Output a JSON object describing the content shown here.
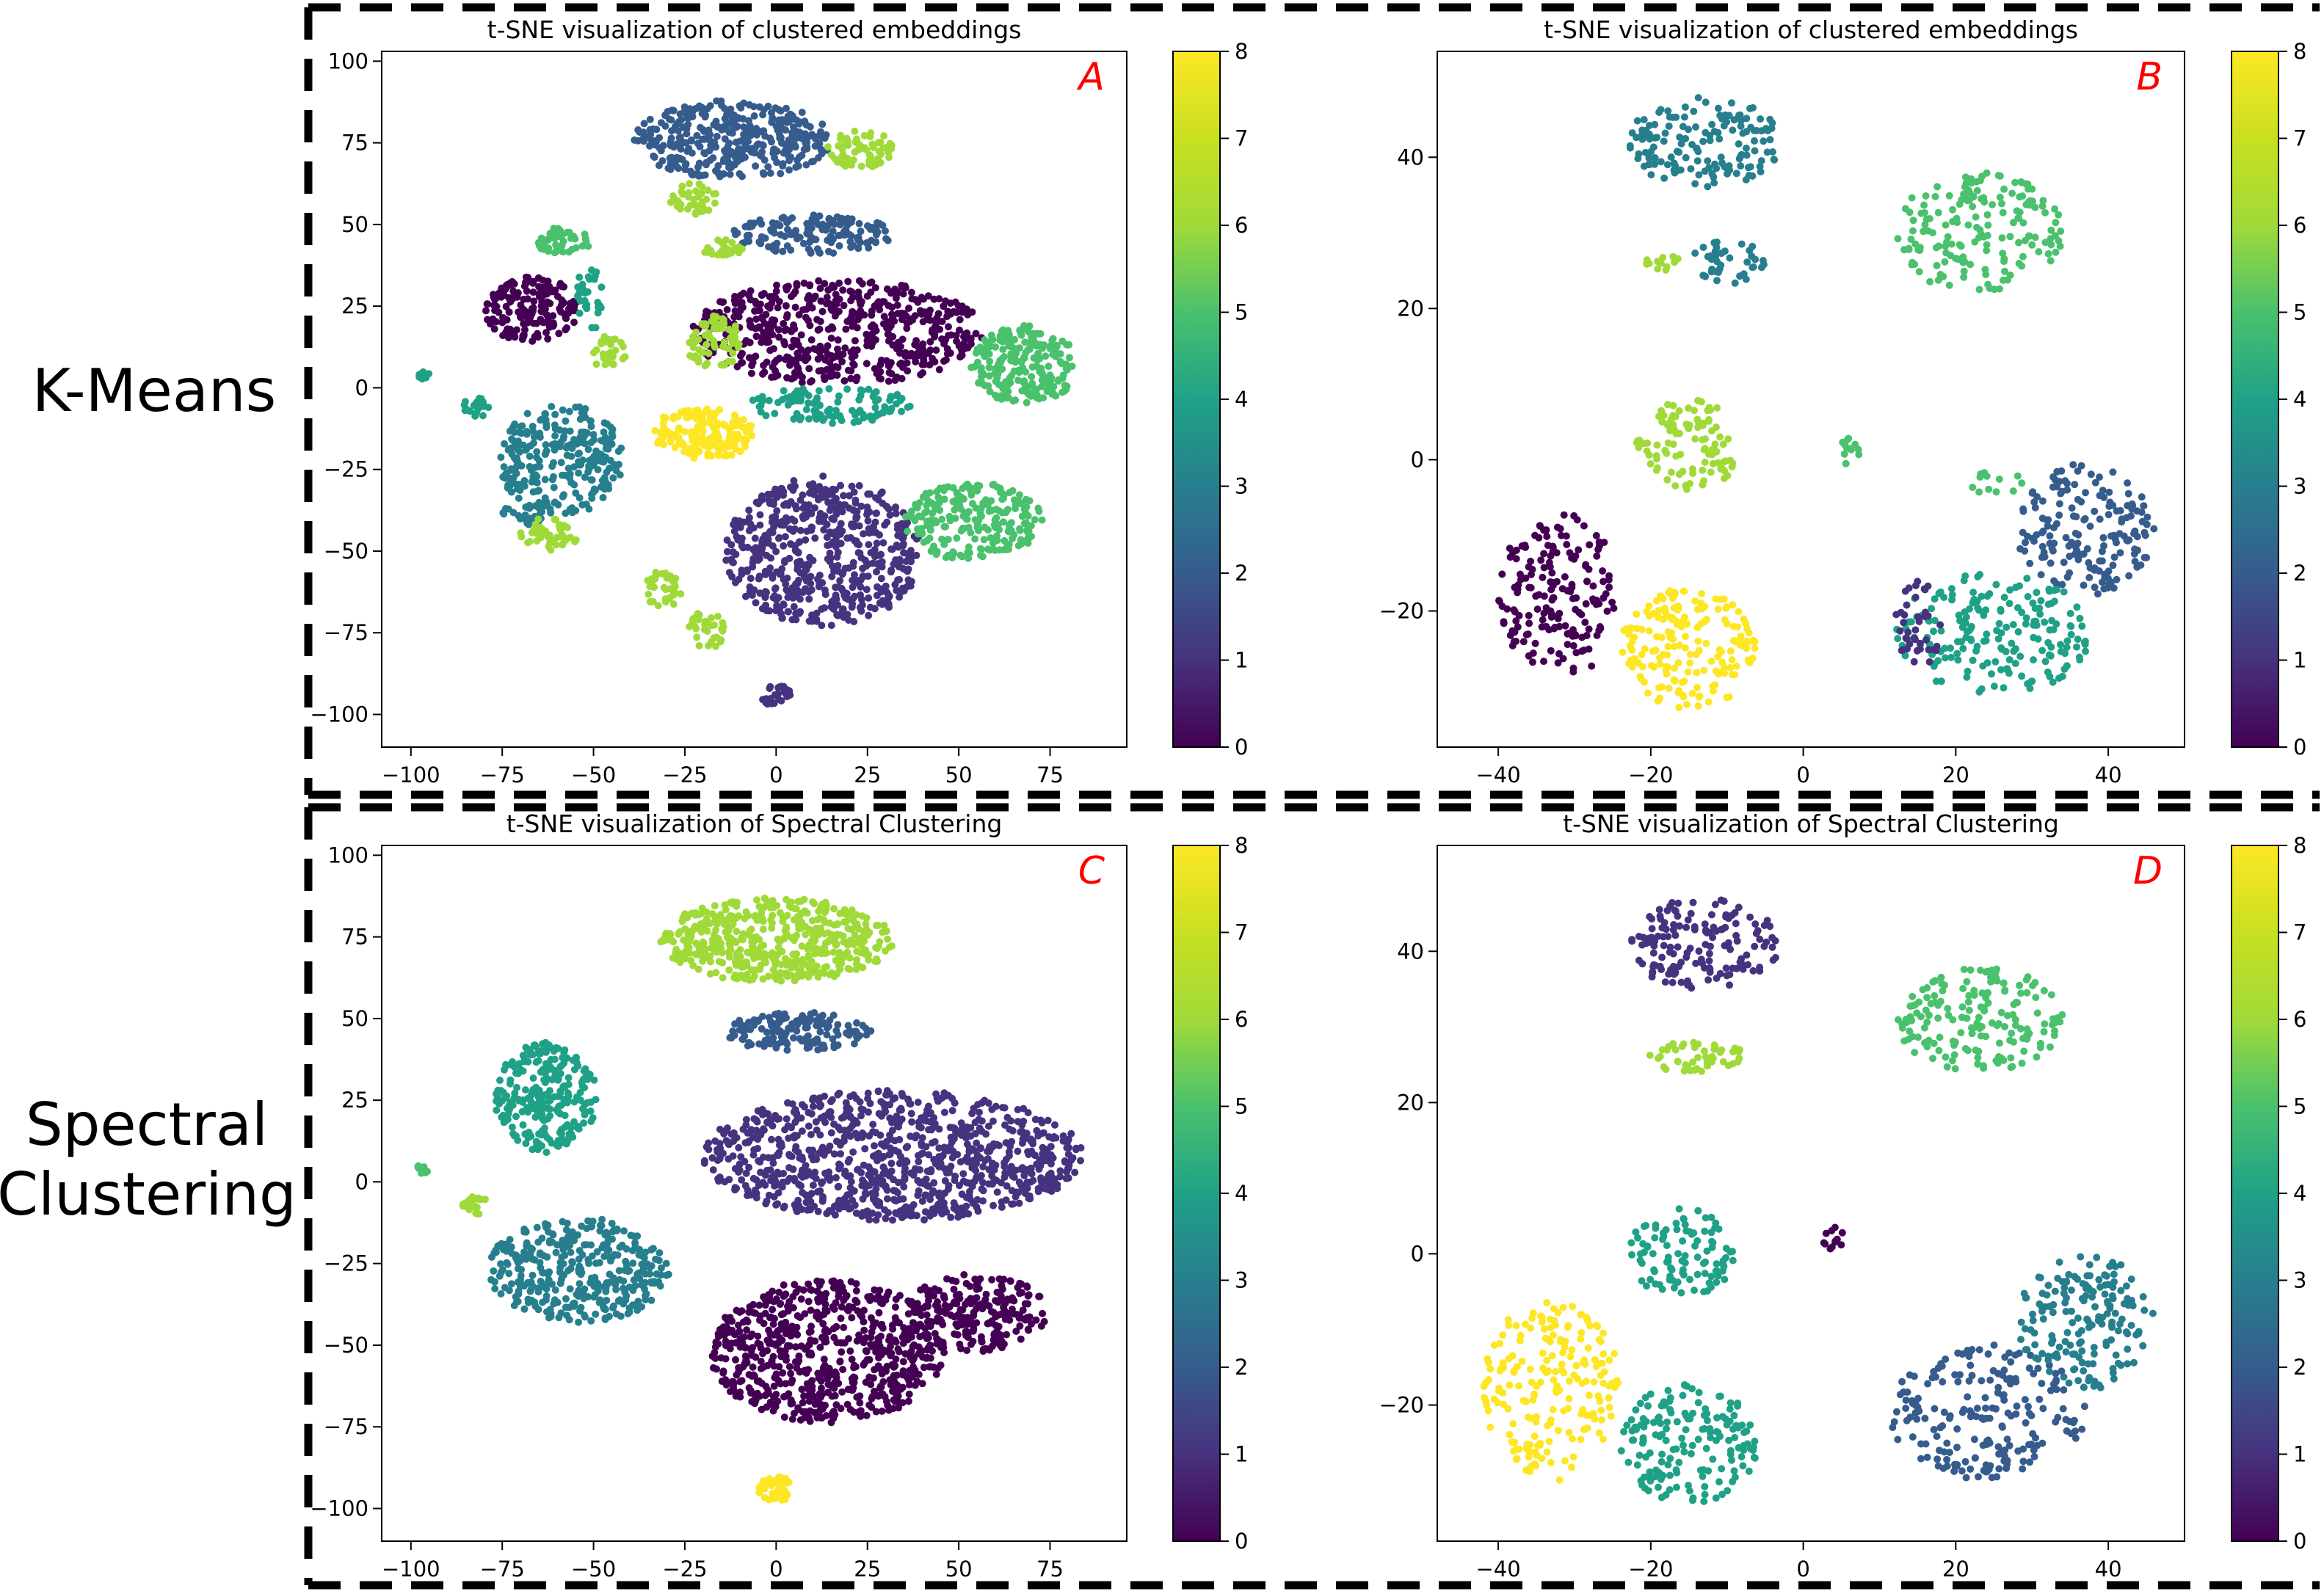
{
  "row_labels": [
    "K-Means",
    "Spectral",
    "Clustering"
  ],
  "colors": {
    "viridis": [
      "#440154",
      "#46327e",
      "#365c8d",
      "#277f8e",
      "#1fa187",
      "#4ac16d",
      "#a0da39",
      "#c8e020",
      "#fde725"
    ],
    "panel_letter": "#ff0000",
    "dash_border": "#000000"
  },
  "chart_data": [
    {
      "id": "A",
      "type": "scatter",
      "title": "t-SNE visualization of clustered embeddings",
      "panel_label": "A",
      "xlim": [
        -108,
        96
      ],
      "ylim": [
        -110,
        103
      ],
      "xticks": [
        -100,
        -75,
        -50,
        -25,
        0,
        25,
        50,
        75
      ],
      "yticks": [
        -100,
        -75,
        -50,
        -25,
        0,
        25,
        50,
        75,
        100
      ],
      "colorbar": {
        "min": 0,
        "max": 8,
        "ticks": [
          0,
          1,
          2,
          3,
          4,
          5,
          6,
          7,
          8
        ]
      },
      "clusters": [
        {
          "x": -12,
          "y": 76,
          "rx": 27,
          "ry": 12,
          "label": 2,
          "n": 360
        },
        {
          "x": 23,
          "y": 73,
          "rx": 9,
          "ry": 6,
          "label": 6,
          "n": 70
        },
        {
          "x": -23,
          "y": 58,
          "rx": 7,
          "ry": 5,
          "label": 6,
          "n": 40
        },
        {
          "x": 10,
          "y": 47,
          "rx": 22,
          "ry": 6,
          "label": 2,
          "n": 150
        },
        {
          "x": -15,
          "y": 43,
          "rx": 6,
          "ry": 3,
          "label": 6,
          "n": 30
        },
        {
          "x": 17,
          "y": 17,
          "rx": 40,
          "ry": 16,
          "label": 0,
          "n": 550
        },
        {
          "x": 68,
          "y": 7,
          "rx": 15,
          "ry": 12,
          "label": 5,
          "n": 220
        },
        {
          "x": 15,
          "y": -5,
          "rx": 22,
          "ry": 6,
          "label": 4,
          "n": 110
        },
        {
          "x": -17,
          "y": 14,
          "rx": 8,
          "ry": 8,
          "label": 6,
          "n": 70
        },
        {
          "x": -67,
          "y": 24,
          "rx": 13,
          "ry": 10,
          "label": 0,
          "n": 170
        },
        {
          "x": -59,
          "y": 45,
          "rx": 9,
          "ry": 4,
          "label": 5,
          "n": 45
        },
        {
          "x": -51,
          "y": 27,
          "rx": 4,
          "ry": 10,
          "label": 4,
          "n": 30
        },
        {
          "x": -46,
          "y": 11,
          "rx": 5,
          "ry": 5,
          "label": 6,
          "n": 30
        },
        {
          "x": -97,
          "y": 4,
          "rx": 2,
          "ry": 1.5,
          "label": 4,
          "n": 12
        },
        {
          "x": -82,
          "y": -6,
          "rx": 4,
          "ry": 3,
          "label": 4,
          "n": 20
        },
        {
          "x": -59,
          "y": -22,
          "rx": 17,
          "ry": 17,
          "label": 3,
          "n": 260
        },
        {
          "x": -20,
          "y": -14,
          "rx": 14,
          "ry": 8,
          "label": 8,
          "n": 160
        },
        {
          "x": -68,
          "y": -38,
          "rx": 7,
          "ry": 4,
          "label": 3,
          "n": 30
        },
        {
          "x": -63,
          "y": -45,
          "rx": 9,
          "ry": 5,
          "label": 6,
          "n": 45
        },
        {
          "x": 13,
          "y": -50,
          "rx": 27,
          "ry": 23,
          "label": 1,
          "n": 560
        },
        {
          "x": 54,
          "y": -41,
          "rx": 19,
          "ry": 12,
          "label": 5,
          "n": 230
        },
        {
          "x": -31,
          "y": -62,
          "rx": 5,
          "ry": 6,
          "label": 6,
          "n": 35
        },
        {
          "x": -19,
          "y": -74,
          "rx": 5,
          "ry": 6,
          "label": 6,
          "n": 35
        },
        {
          "x": 0,
          "y": -94,
          "rx": 4,
          "ry": 4,
          "label": 1,
          "n": 25
        }
      ]
    },
    {
      "id": "B",
      "type": "scatter",
      "title": "t-SNE visualization of clustered embeddings",
      "panel_label": "B",
      "xlim": [
        -48,
        50
      ],
      "ylim": [
        -38,
        54
      ],
      "xticks": [
        -40,
        -20,
        0,
        20,
        40
      ],
      "yticks": [
        -20,
        0,
        20,
        40
      ],
      "colorbar": {
        "min": 0,
        "max": 8,
        "ticks": [
          0,
          1,
          2,
          3,
          4,
          5,
          6,
          7,
          8
        ]
      },
      "clusters": [
        {
          "x": -13,
          "y": 42,
          "rx": 10,
          "ry": 6,
          "label": 3,
          "n": 150
        },
        {
          "x": -10,
          "y": 26,
          "rx": 5,
          "ry": 3,
          "label": 3,
          "n": 40
        },
        {
          "x": -18,
          "y": 26,
          "rx": 3,
          "ry": 1,
          "label": 6,
          "n": 12
        },
        {
          "x": 23,
          "y": 30,
          "rx": 11,
          "ry": 8,
          "label": 5,
          "n": 170
        },
        {
          "x": -15,
          "y": 2,
          "rx": 7,
          "ry": 6,
          "label": 6,
          "n": 100
        },
        {
          "x": 6,
          "y": 1,
          "rx": 1.5,
          "ry": 2,
          "label": 5,
          "n": 12
        },
        {
          "x": -32,
          "y": -18,
          "rx": 8,
          "ry": 11,
          "label": 0,
          "n": 180
        },
        {
          "x": -15,
          "y": -25,
          "rx": 9,
          "ry": 8,
          "label": 8,
          "n": 180
        },
        {
          "x": 37,
          "y": -9,
          "rx": 9,
          "ry": 9,
          "label": 2,
          "n": 170
        },
        {
          "x": 25,
          "y": -23,
          "rx": 13,
          "ry": 8,
          "label": 4,
          "n": 190
        },
        {
          "x": 15,
          "y": -22,
          "rx": 3,
          "ry": 6,
          "label": 1,
          "n": 40
        },
        {
          "x": 25,
          "y": -3,
          "rx": 4,
          "ry": 1.5,
          "label": 5,
          "n": 12
        }
      ]
    },
    {
      "id": "C",
      "type": "scatter",
      "title": "t-SNE visualization of Spectral Clustering",
      "panel_label": "C",
      "xlim": [
        -108,
        96
      ],
      "ylim": [
        -110,
        103
      ],
      "xticks": [
        -100,
        -75,
        -50,
        -25,
        0,
        25,
        50,
        75
      ],
      "yticks": [
        -100,
        -75,
        -50,
        -25,
        0,
        25,
        50,
        75,
        100
      ],
      "colorbar": {
        "min": 0,
        "max": 8,
        "ticks": [
          0,
          1,
          2,
          3,
          4,
          5,
          6,
          7,
          8
        ]
      },
      "clusters": [
        {
          "x": 0,
          "y": 74,
          "rx": 32,
          "ry": 13,
          "label": 6,
          "n": 480
        },
        {
          "x": 6,
          "y": 46,
          "rx": 20,
          "ry": 6,
          "label": 2,
          "n": 140
        },
        {
          "x": 32,
          "y": 8,
          "rx": 52,
          "ry": 20,
          "label": 1,
          "n": 900
        },
        {
          "x": -63,
          "y": 26,
          "rx": 14,
          "ry": 17,
          "label": 4,
          "n": 260
        },
        {
          "x": -54,
          "y": -27,
          "rx": 25,
          "ry": 16,
          "label": 3,
          "n": 350
        },
        {
          "x": -97,
          "y": 4,
          "rx": 2,
          "ry": 1.5,
          "label": 5,
          "n": 12
        },
        {
          "x": -82,
          "y": -7,
          "rx": 4,
          "ry": 3,
          "label": 6,
          "n": 22
        },
        {
          "x": 14,
          "y": -52,
          "rx": 32,
          "ry": 22,
          "label": 0,
          "n": 650
        },
        {
          "x": 55,
          "y": -40,
          "rx": 19,
          "ry": 12,
          "label": 0,
          "n": 220
        },
        {
          "x": 0,
          "y": -94,
          "rx": 5,
          "ry": 4,
          "label": 8,
          "n": 40
        }
      ]
    },
    {
      "id": "D",
      "type": "scatter",
      "title": "t-SNE visualization of Spectral Clustering",
      "panel_label": "D",
      "xlim": [
        -48,
        50
      ],
      "ylim": [
        -38,
        54
      ],
      "xticks": [
        -40,
        -20,
        0,
        20,
        40
      ],
      "yticks": [
        -20,
        0,
        20,
        40
      ],
      "colorbar": {
        "min": 0,
        "max": 8,
        "ticks": [
          0,
          1,
          2,
          3,
          4,
          5,
          6,
          7,
          8
        ]
      },
      "clusters": [
        {
          "x": -13,
          "y": 41,
          "rx": 10,
          "ry": 6,
          "label": 1,
          "n": 150
        },
        {
          "x": -14,
          "y": 26,
          "rx": 7,
          "ry": 2,
          "label": 6,
          "n": 50
        },
        {
          "x": 23,
          "y": 31,
          "rx": 11,
          "ry": 7,
          "label": 5,
          "n": 170
        },
        {
          "x": -16,
          "y": 0,
          "rx": 7,
          "ry": 6,
          "label": 4,
          "n": 100
        },
        {
          "x": 4,
          "y": 2,
          "rx": 1.5,
          "ry": 1.5,
          "label": 0,
          "n": 12
        },
        {
          "x": -33,
          "y": -18,
          "rx": 9,
          "ry": 12,
          "label": 8,
          "n": 200
        },
        {
          "x": -15,
          "y": -25,
          "rx": 9,
          "ry": 8,
          "label": 4,
          "n": 170
        },
        {
          "x": 24,
          "y": -21,
          "rx": 13,
          "ry": 9,
          "label": 2,
          "n": 200
        },
        {
          "x": 37,
          "y": -9,
          "rx": 9,
          "ry": 9,
          "label": 3,
          "n": 170
        }
      ]
    }
  ]
}
